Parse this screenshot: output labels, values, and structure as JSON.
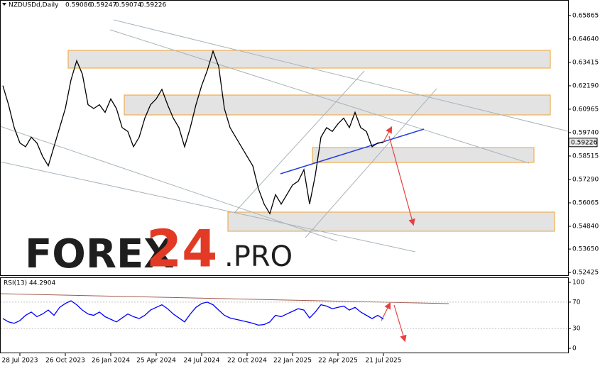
{
  "header": {
    "title": "NZDUSDd,Daily",
    "ohlc": [
      0.59086,
      0.59247,
      0.59074,
      0.59226
    ]
  },
  "logo": {
    "part1": "FOREX",
    "part2": "24",
    "part3": ".PRO"
  },
  "chart_data": [
    {
      "type": "line",
      "categories": [
        null,
        null,
        null,
        "28 Jul 2023",
        null,
        null,
        null,
        null,
        null,
        null,
        null,
        "26 Oct 2023",
        null,
        null,
        null,
        null,
        null,
        null,
        null,
        "26 Jan 2024",
        null,
        null,
        null,
        null,
        null,
        null,
        null,
        "25 Apr 2024",
        null,
        null,
        null,
        null,
        null,
        null,
        null,
        "24 Jul 2024",
        null,
        null,
        null,
        null,
        null,
        null,
        null,
        "22 Oct 2024",
        null,
        null,
        null,
        null,
        null,
        null,
        null,
        "22 Jan 2025",
        null,
        null,
        null,
        null,
        null,
        null,
        null,
        "22 Apr 2025",
        null,
        null,
        null,
        null,
        null,
        null,
        null,
        "21 Jul 2025"
      ],
      "series": [
        {
          "name": "NZDUSDd",
          "color": "#000000",
          "values": [
            0.622,
            0.612,
            0.6,
            0.592,
            0.59,
            0.595,
            0.592,
            0.585,
            0.58,
            0.59,
            0.6,
            0.61,
            0.625,
            0.635,
            0.628,
            0.612,
            0.61,
            0.612,
            0.608,
            0.615,
            0.61,
            0.6,
            0.598,
            0.59,
            0.595,
            0.605,
            0.612,
            0.615,
            0.62,
            0.612,
            0.605,
            0.6,
            0.59,
            0.6,
            0.612,
            0.622,
            0.63,
            0.64,
            0.632,
            0.61,
            0.6,
            0.595,
            0.59,
            0.585,
            0.58,
            0.568,
            0.56,
            0.555,
            0.565,
            0.56,
            0.565,
            0.57,
            0.572,
            0.578,
            0.56,
            0.575,
            0.595,
            0.6,
            0.598,
            0.602,
            0.605,
            0.6,
            0.608,
            0.6,
            0.598,
            0.59,
            0.592,
            0.59226
          ]
        }
      ],
      "last_price": 0.59226,
      "ylim": [
        0.5228,
        0.6638
      ],
      "yticks": [
        0.65865,
        {
          "value": 0.6464,
          "label": "0.64640"
        },
        0.63415,
        {
          "value": 0.6219,
          "label": "0.62190"
        },
        0.60965,
        {
          "value": 0.5974,
          "label": "0.59740"
        },
        0.58515,
        {
          "value": 0.5729,
          "label": "0.57290"
        },
        0.56065,
        {
          "value": 0.5484,
          "label": "0.54840"
        },
        {
          "value": 0.5365,
          "label": "0.53650"
        },
        0.52425
      ]
    },
    {
      "type": "line",
      "title": "RSI(13) 44.2904",
      "series": [
        {
          "name": "RSI(13)",
          "color": "#0000ff",
          "values": [
            45,
            40,
            38,
            42,
            50,
            55,
            48,
            52,
            58,
            50,
            62,
            68,
            72,
            66,
            58,
            52,
            50,
            55,
            48,
            44,
            40,
            46,
            52,
            48,
            45,
            50,
            58,
            62,
            66,
            60,
            52,
            46,
            40,
            52,
            62,
            68,
            70,
            66,
            58,
            50,
            46,
            44,
            42,
            40,
            38,
            35,
            36,
            40,
            50,
            48,
            52,
            56,
            60,
            58,
            46,
            55,
            66,
            64,
            60,
            62,
            64,
            58,
            62,
            55,
            50,
            45,
            50,
            44.29
          ]
        }
      ],
      "ylim": [
        0,
        100
      ],
      "yticks": [
        100,
        70,
        30,
        0
      ]
    }
  ]
}
